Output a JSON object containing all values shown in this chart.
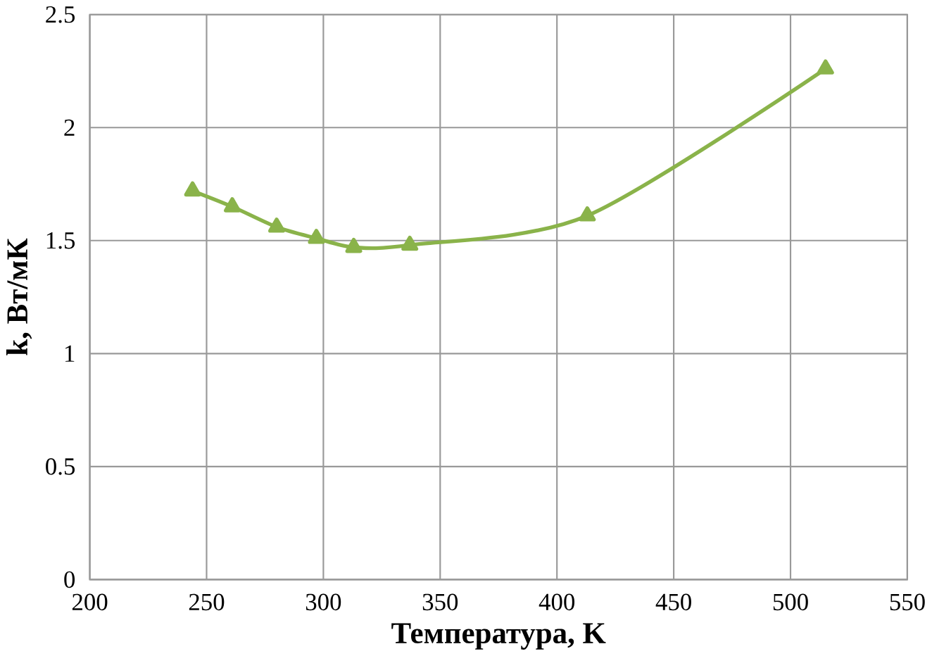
{
  "chart_data": {
    "type": "line",
    "xlabel": "Температура, K",
    "ylabel": "k, Вт/мК",
    "x": [
      244,
      261,
      280,
      297,
      313,
      337,
      413,
      515
    ],
    "series": [
      {
        "color": "#8ab34a",
        "values": [
          1.72,
          1.65,
          1.56,
          1.51,
          1.47,
          1.48,
          1.61,
          2.26
        ]
      }
    ],
    "xlim": [
      200,
      550
    ],
    "xticks": [
      200,
      250,
      300,
      350,
      400,
      450,
      500,
      550
    ],
    "ylim": [
      0,
      2.5
    ],
    "yticks": [
      0,
      0.5,
      1,
      1.5,
      2,
      2.5
    ],
    "grid": true,
    "marker": "triangle",
    "line_style": "solid"
  }
}
